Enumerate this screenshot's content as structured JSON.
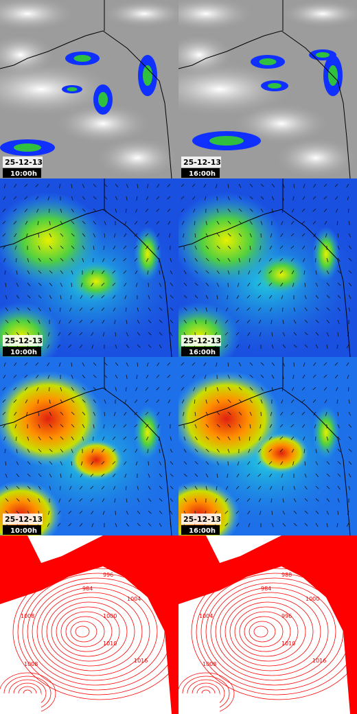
{
  "panels": [
    {
      "date": "25-12-13",
      "time": "10:00h"
    },
    {
      "date": "25-12-13",
      "time": "16:00h"
    },
    {
      "date": "25-12-13",
      "time": "10:00h"
    },
    {
      "date": "25-12-13",
      "time": "16:00h"
    },
    {
      "date": "25-12-13",
      "time": "10:00h"
    },
    {
      "date": "25-12-13",
      "time": "16:00h"
    }
  ],
  "pressure_maps": [
    {
      "labels": [
        "984",
        "996",
        "1000",
        "1004",
        "1008",
        "1010",
        "1016",
        "1008"
      ]
    },
    {
      "labels": [
        "984",
        "988",
        "996",
        "1000",
        "1004",
        "1010",
        "1016",
        "1008"
      ]
    }
  ]
}
